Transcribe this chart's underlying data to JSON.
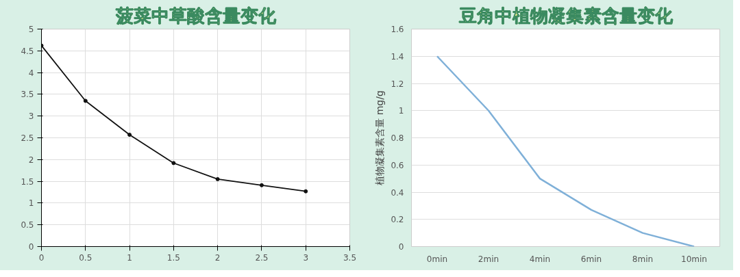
{
  "chart_data": [
    {
      "type": "line",
      "title": "菠菜中草酸含量变化",
      "x": [
        0,
        0.5,
        1,
        1.5,
        2,
        2.5,
        3
      ],
      "series": [
        {
          "color": "#111111",
          "values": [
            4.62,
            3.35,
            2.57,
            1.92,
            1.55,
            1.41,
            1.27
          ]
        }
      ],
      "xlim": [
        0,
        3.5
      ],
      "xticks": [
        0,
        0.5,
        1,
        1.5,
        2,
        2.5,
        3,
        3.5
      ],
      "ylim": [
        0,
        5
      ],
      "yticks": [
        0,
        0.5,
        1,
        1.5,
        2,
        2.5,
        3,
        3.5,
        4,
        4.5,
        5
      ],
      "grid": true,
      "marker": "circle",
      "line_style": "solid"
    },
    {
      "type": "line",
      "title": "豆角中植物凝集素含量变化",
      "ylabel": "植物凝集素含量 mg/g",
      "categories": [
        "0min",
        "2min",
        "4min",
        "6min",
        "8min",
        "10min"
      ],
      "series": [
        {
          "color": "#7fb0d8",
          "values": [
            1.4,
            1.0,
            0.5,
            0.27,
            0.1,
            0.0
          ]
        }
      ],
      "ylim": [
        0,
        1.6
      ],
      "yticks": [
        0,
        0.2,
        0.4,
        0.6,
        0.8,
        1,
        1.2,
        1.4,
        1.6
      ],
      "grid": "y",
      "marker": "none",
      "line_style": "solid"
    }
  ]
}
